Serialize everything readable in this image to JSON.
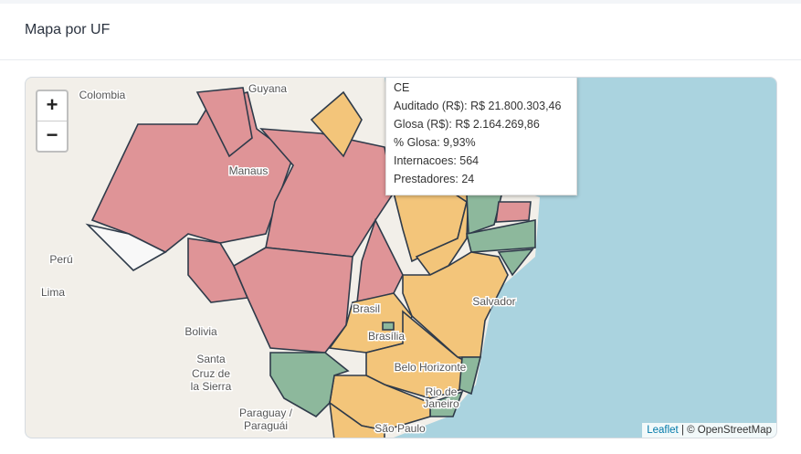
{
  "header": {
    "title": "Mapa por UF"
  },
  "map": {
    "zoom_in": "+",
    "zoom_out": "−",
    "labels": [
      "Colombia",
      "Guyana",
      "Manaus",
      "Perú",
      "Lima",
      "Bolivia",
      "Santa",
      "Cruz de",
      "la Sierra",
      "Brasil",
      "Brasília",
      "Salvador",
      "Belo Horizonte",
      "Rio de",
      "Janeiro",
      "Paraguay /",
      "Paraguái",
      "São Paulo"
    ],
    "tooltip": {
      "lines": [
        "CE",
        "Auditado (R$): R$ 21.800.303,46",
        "Glosa (R$): R$ 2.164.269,86",
        "% Glosa: 9,93%",
        "Internacoes: 564",
        "Prestadores: 24"
      ]
    },
    "attribution": {
      "link": "Leaflet",
      "text": "| © OpenStreetMap"
    }
  }
}
